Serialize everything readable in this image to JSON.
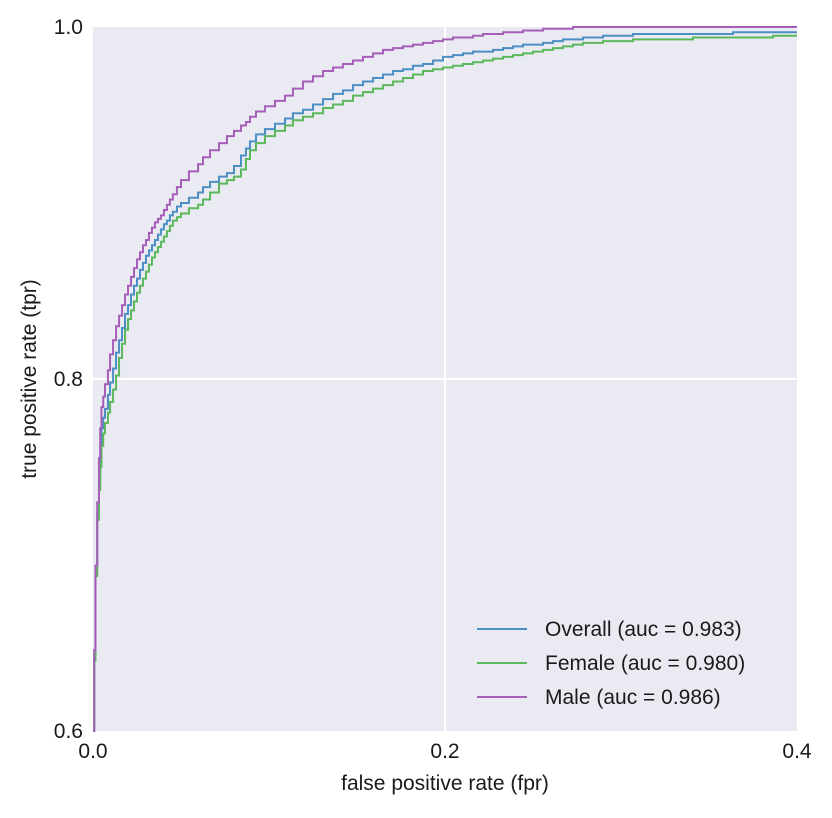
{
  "chart_data": {
    "type": "line",
    "title": "",
    "xlabel": "false positive rate (fpr)",
    "ylabel": "true positive rate (tpr)",
    "xlim": [
      0.0,
      0.4
    ],
    "ylim": [
      0.6,
      1.0
    ],
    "xticks": [
      0.0,
      0.2,
      0.4
    ],
    "yticks": [
      0.6,
      0.8,
      1.0
    ],
    "xtick_labels": [
      "0.0",
      "0.2",
      "0.4"
    ],
    "ytick_labels": [
      "0.6",
      "0.8",
      "1.0"
    ],
    "grid": true,
    "legend_position": "bottom-right",
    "background": "#eaeaf2",
    "series": [
      {
        "name": "Overall (auc = 0.983)",
        "color": "#4c8fc4",
        "x": [
          0.0,
          0.0007,
          0.0014,
          0.0024,
          0.0034,
          0.0041,
          0.0048,
          0.0058,
          0.0068,
          0.0085,
          0.0097,
          0.0114,
          0.0131,
          0.0148,
          0.0165,
          0.0182,
          0.0199,
          0.0216,
          0.0233,
          0.025,
          0.0267,
          0.0284,
          0.0301,
          0.0318,
          0.0335,
          0.0352,
          0.0369,
          0.0386,
          0.0403,
          0.042,
          0.0437,
          0.0454,
          0.0477,
          0.05,
          0.0545,
          0.0597,
          0.0625,
          0.0665,
          0.0716,
          0.0761,
          0.0801,
          0.0841,
          0.0869,
          0.0892,
          0.0926,
          0.0977,
          0.1034,
          0.1091,
          0.1136,
          0.1193,
          0.125,
          0.1307,
          0.1364,
          0.142,
          0.1477,
          0.1534,
          0.1591,
          0.1648,
          0.1705,
          0.1761,
          0.1818,
          0.1875,
          0.1932,
          0.1989,
          0.2045,
          0.2102,
          0.2159,
          0.2216,
          0.2273,
          0.233,
          0.2386,
          0.2443,
          0.25,
          0.2557,
          0.2614,
          0.267,
          0.2727,
          0.2784,
          0.2841,
          0.2898,
          0.2955,
          0.3068,
          0.3182,
          0.3409,
          0.3636,
          0.3864,
          0.4
        ],
        "y": [
          0.6,
          0.643,
          0.691,
          0.724,
          0.745,
          0.759,
          0.772,
          0.778,
          0.783,
          0.791,
          0.798,
          0.806,
          0.815,
          0.822,
          0.829,
          0.837,
          0.842,
          0.848,
          0.853,
          0.857,
          0.862,
          0.866,
          0.87,
          0.873,
          0.876,
          0.879,
          0.882,
          0.885,
          0.888,
          0.89,
          0.893,
          0.895,
          0.898,
          0.9,
          0.903,
          0.906,
          0.909,
          0.912,
          0.915,
          0.917,
          0.921,
          0.927,
          0.931,
          0.935,
          0.939,
          0.942,
          0.945,
          0.948,
          0.951,
          0.953,
          0.956,
          0.959,
          0.962,
          0.964,
          0.967,
          0.969,
          0.971,
          0.973,
          0.975,
          0.976,
          0.978,
          0.979,
          0.981,
          0.983,
          0.984,
          0.985,
          0.986,
          0.986,
          0.987,
          0.988,
          0.989,
          0.99,
          0.99,
          0.991,
          0.992,
          0.993,
          0.993,
          0.994,
          0.994,
          0.995,
          0.995,
          0.996,
          0.996,
          0.996,
          0.997,
          0.997,
          0.997
        ]
      },
      {
        "name": "Female (auc = 0.980)",
        "color": "#5cb85c",
        "x": [
          0.0,
          0.0007,
          0.0014,
          0.0024,
          0.0034,
          0.0041,
          0.0048,
          0.0058,
          0.0068,
          0.0085,
          0.0097,
          0.0114,
          0.0131,
          0.0148,
          0.0165,
          0.0182,
          0.0199,
          0.0216,
          0.0233,
          0.025,
          0.0267,
          0.0284,
          0.0301,
          0.0318,
          0.0335,
          0.0352,
          0.0369,
          0.0386,
          0.0403,
          0.042,
          0.0437,
          0.0454,
          0.0477,
          0.05,
          0.0545,
          0.0597,
          0.0625,
          0.0665,
          0.0716,
          0.0761,
          0.0801,
          0.0841,
          0.0869,
          0.0892,
          0.0926,
          0.0977,
          0.1034,
          0.1091,
          0.1136,
          0.1193,
          0.125,
          0.1307,
          0.1364,
          0.142,
          0.1477,
          0.1534,
          0.1591,
          0.1648,
          0.1705,
          0.1761,
          0.1818,
          0.1875,
          0.1932,
          0.1989,
          0.2045,
          0.2102,
          0.2159,
          0.2216,
          0.2273,
          0.233,
          0.2386,
          0.2443,
          0.25,
          0.2557,
          0.2614,
          0.267,
          0.2727,
          0.2784,
          0.2841,
          0.2898,
          0.2955,
          0.3068,
          0.3182,
          0.3409,
          0.3636,
          0.3864,
          0.4
        ],
        "y": [
          0.6,
          0.64,
          0.688,
          0.72,
          0.737,
          0.75,
          0.762,
          0.769,
          0.775,
          0.781,
          0.787,
          0.794,
          0.802,
          0.812,
          0.82,
          0.828,
          0.834,
          0.839,
          0.844,
          0.849,
          0.853,
          0.857,
          0.861,
          0.865,
          0.869,
          0.872,
          0.875,
          0.878,
          0.881,
          0.884,
          0.887,
          0.89,
          0.892,
          0.894,
          0.897,
          0.899,
          0.902,
          0.906,
          0.911,
          0.913,
          0.915,
          0.919,
          0.925,
          0.93,
          0.934,
          0.938,
          0.941,
          0.944,
          0.947,
          0.949,
          0.951,
          0.954,
          0.956,
          0.958,
          0.961,
          0.963,
          0.965,
          0.967,
          0.969,
          0.971,
          0.973,
          0.975,
          0.976,
          0.977,
          0.978,
          0.979,
          0.98,
          0.981,
          0.982,
          0.983,
          0.984,
          0.985,
          0.986,
          0.987,
          0.988,
          0.989,
          0.99,
          0.991,
          0.991,
          0.992,
          0.992,
          0.993,
          0.993,
          0.994,
          0.994,
          0.995,
          0.995
        ]
      },
      {
        "name": "Male (auc = 0.986)",
        "color": "#a65fb9",
        "x": [
          0.0,
          0.0007,
          0.0014,
          0.0024,
          0.0034,
          0.0041,
          0.0048,
          0.0058,
          0.0068,
          0.0085,
          0.0097,
          0.0114,
          0.0131,
          0.0148,
          0.0165,
          0.0182,
          0.0199,
          0.0216,
          0.0233,
          0.025,
          0.0267,
          0.0284,
          0.0301,
          0.0318,
          0.0335,
          0.0352,
          0.0369,
          0.0386,
          0.0403,
          0.042,
          0.0437,
          0.0454,
          0.0477,
          0.05,
          0.0545,
          0.0597,
          0.0625,
          0.0665,
          0.0716,
          0.0761,
          0.0801,
          0.0841,
          0.0869,
          0.0892,
          0.0926,
          0.0977,
          0.1034,
          0.1091,
          0.1136,
          0.1193,
          0.125,
          0.1307,
          0.1364,
          0.142,
          0.1477,
          0.1534,
          0.1591,
          0.1648,
          0.1705,
          0.1761,
          0.1818,
          0.1875,
          0.1932,
          0.1989,
          0.2045,
          0.2102,
          0.2159,
          0.2216,
          0.2273,
          0.233,
          0.2386,
          0.2443,
          0.25,
          0.2557,
          0.2614,
          0.267,
          0.2727,
          0.2784,
          0.2841,
          0.2898,
          0.2955,
          0.3068,
          0.3182,
          0.3409,
          0.3636,
          0.3864,
          0.4
        ],
        "y": [
          0.6,
          0.646,
          0.694,
          0.73,
          0.755,
          0.772,
          0.784,
          0.79,
          0.797,
          0.805,
          0.814,
          0.822,
          0.83,
          0.836,
          0.842,
          0.848,
          0.853,
          0.858,
          0.863,
          0.868,
          0.872,
          0.876,
          0.879,
          0.883,
          0.886,
          0.889,
          0.891,
          0.893,
          0.896,
          0.899,
          0.902,
          0.905,
          0.909,
          0.913,
          0.918,
          0.922,
          0.926,
          0.93,
          0.934,
          0.938,
          0.941,
          0.944,
          0.946,
          0.949,
          0.952,
          0.955,
          0.958,
          0.961,
          0.965,
          0.969,
          0.972,
          0.975,
          0.977,
          0.979,
          0.981,
          0.983,
          0.985,
          0.987,
          0.988,
          0.989,
          0.99,
          0.991,
          0.992,
          0.993,
          0.994,
          0.994,
          0.995,
          0.996,
          0.996,
          0.997,
          0.997,
          0.998,
          0.998,
          0.999,
          0.999,
          0.999,
          1.0,
          1.0,
          1.0,
          1.0,
          1.0,
          1.0,
          1.0,
          1.0,
          1.0,
          1.0,
          1.0
        ]
      }
    ]
  }
}
